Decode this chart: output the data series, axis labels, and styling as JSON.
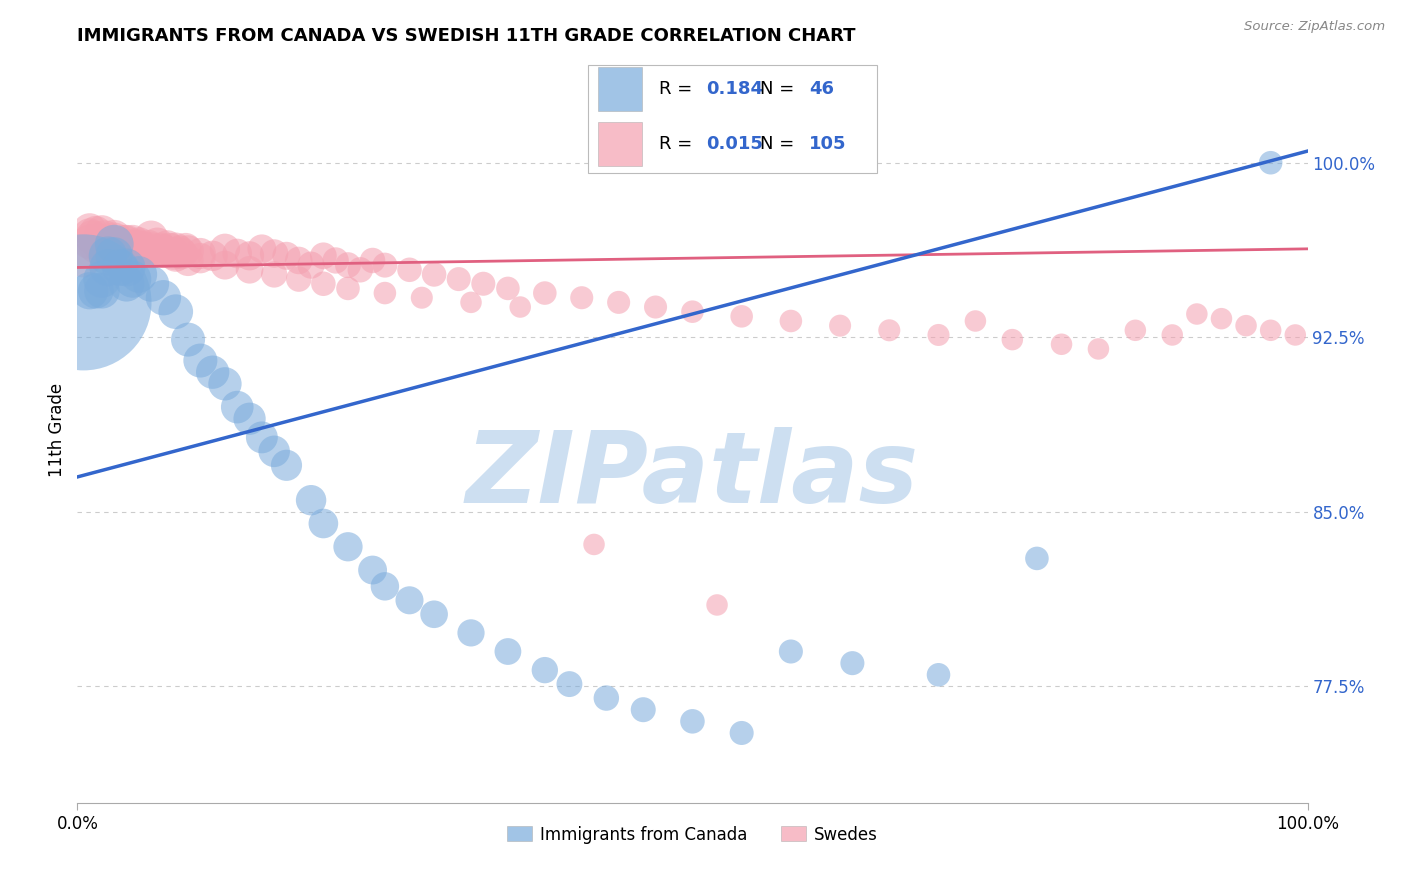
{
  "title": "IMMIGRANTS FROM CANADA VS SWEDISH 11TH GRADE CORRELATION CHART",
  "source_text": "Source: ZipAtlas.com",
  "ylabel": "11th Grade",
  "x_tick_labels": [
    "0.0%",
    "100.0%"
  ],
  "y_tick_labels_right": [
    "77.5%",
    "85.0%",
    "92.5%",
    "100.0%"
  ],
  "y_tick_values_right": [
    0.775,
    0.85,
    0.925,
    1.0
  ],
  "xlim": [
    0.0,
    1.0
  ],
  "ylim": [
    0.725,
    1.045
  ],
  "legend_R_blue": "0.184",
  "legend_N_blue": "46",
  "legend_R_pink": "0.015",
  "legend_N_pink": "105",
  "legend_label_blue": "Immigrants from Canada",
  "legend_label_pink": "Swedes",
  "blue_color": "#7AABDC",
  "pink_color": "#F4A0B0",
  "blue_line_color": "#3366CC",
  "pink_line_color": "#E06080",
  "title_fontsize": 13,
  "watermark": "ZIPatlas",
  "watermark_color": "#C8DCF0",
  "grid_color": "#CCCCCC",
  "blue_line_x": [
    0.0,
    1.0
  ],
  "blue_line_y": [
    0.865,
    1.005
  ],
  "pink_line_x": [
    0.0,
    1.0
  ],
  "pink_line_y": [
    0.955,
    0.963
  ],
  "blue_scatter_x": [
    0.005,
    0.01,
    0.015,
    0.02,
    0.02,
    0.025,
    0.025,
    0.03,
    0.03,
    0.035,
    0.04,
    0.04,
    0.045,
    0.05,
    0.06,
    0.07,
    0.08,
    0.09,
    0.1,
    0.11,
    0.12,
    0.13,
    0.14,
    0.15,
    0.16,
    0.17,
    0.19,
    0.2,
    0.22,
    0.24,
    0.25,
    0.27,
    0.29,
    0.32,
    0.35,
    0.38,
    0.4,
    0.43,
    0.46,
    0.5,
    0.54,
    0.58,
    0.63,
    0.7,
    0.78,
    0.97
  ],
  "blue_scatter_y": [
    0.94,
    0.945,
    0.945,
    0.95,
    0.945,
    0.96,
    0.955,
    0.965,
    0.96,
    0.955,
    0.955,
    0.948,
    0.95,
    0.952,
    0.948,
    0.942,
    0.936,
    0.924,
    0.915,
    0.91,
    0.905,
    0.895,
    0.89,
    0.882,
    0.876,
    0.87,
    0.855,
    0.845,
    0.835,
    0.825,
    0.818,
    0.812,
    0.806,
    0.798,
    0.79,
    0.782,
    0.776,
    0.77,
    0.765,
    0.76,
    0.755,
    0.79,
    0.785,
    0.78,
    0.83,
    1.0
  ],
  "blue_scatter_size": [
    800,
    60,
    55,
    60,
    55,
    65,
    60,
    65,
    60,
    58,
    62,
    55,
    60,
    58,
    56,
    54,
    52,
    50,
    50,
    48,
    48,
    46,
    45,
    44,
    43,
    42,
    40,
    38,
    37,
    36,
    35,
    34,
    33,
    32,
    31,
    30,
    29,
    28,
    27,
    26,
    25,
    25,
    25,
    24,
    24,
    24
  ],
  "pink_scatter_x": [
    0.005,
    0.007,
    0.01,
    0.012,
    0.015,
    0.015,
    0.018,
    0.02,
    0.022,
    0.025,
    0.028,
    0.03,
    0.033,
    0.035,
    0.038,
    0.04,
    0.042,
    0.045,
    0.048,
    0.05,
    0.053,
    0.055,
    0.058,
    0.06,
    0.063,
    0.065,
    0.068,
    0.07,
    0.073,
    0.075,
    0.078,
    0.08,
    0.083,
    0.085,
    0.088,
    0.09,
    0.1,
    0.11,
    0.12,
    0.13,
    0.14,
    0.15,
    0.16,
    0.17,
    0.18,
    0.19,
    0.2,
    0.21,
    0.22,
    0.23,
    0.24,
    0.25,
    0.27,
    0.29,
    0.31,
    0.33,
    0.35,
    0.38,
    0.41,
    0.44,
    0.47,
    0.5,
    0.54,
    0.58,
    0.62,
    0.66,
    0.7,
    0.73,
    0.76,
    0.8,
    0.83,
    0.86,
    0.89,
    0.91,
    0.93,
    0.95,
    0.97,
    0.99,
    0.01,
    0.01,
    0.02,
    0.02,
    0.03,
    0.03,
    0.04,
    0.04,
    0.05,
    0.05,
    0.06,
    0.07,
    0.08,
    0.09,
    0.1,
    0.12,
    0.14,
    0.16,
    0.18,
    0.2,
    0.22,
    0.25,
    0.28,
    0.32,
    0.36,
    0.42,
    0.52
  ],
  "pink_scatter_y": [
    0.958,
    0.962,
    0.966,
    0.968,
    0.964,
    0.97,
    0.965,
    0.97,
    0.968,
    0.966,
    0.964,
    0.968,
    0.965,
    0.963,
    0.966,
    0.964,
    0.962,
    0.966,
    0.964,
    0.965,
    0.963,
    0.962,
    0.964,
    0.963,
    0.962,
    0.965,
    0.963,
    0.962,
    0.964,
    0.963,
    0.961,
    0.963,
    0.962,
    0.961,
    0.963,
    0.962,
    0.961,
    0.96,
    0.963,
    0.961,
    0.96,
    0.963,
    0.961,
    0.96,
    0.958,
    0.956,
    0.96,
    0.958,
    0.956,
    0.954,
    0.958,
    0.956,
    0.954,
    0.952,
    0.95,
    0.948,
    0.946,
    0.944,
    0.942,
    0.94,
    0.938,
    0.936,
    0.934,
    0.932,
    0.93,
    0.928,
    0.926,
    0.932,
    0.924,
    0.922,
    0.92,
    0.928,
    0.926,
    0.935,
    0.933,
    0.93,
    0.928,
    0.926,
    0.971,
    0.969,
    0.965,
    0.963,
    0.967,
    0.964,
    0.966,
    0.963,
    0.964,
    0.962,
    0.968,
    0.962,
    0.96,
    0.958,
    0.959,
    0.956,
    0.954,
    0.952,
    0.95,
    0.948,
    0.946,
    0.944,
    0.942,
    0.94,
    0.938,
    0.836,
    0.81
  ],
  "pink_scatter_size": [
    50,
    50,
    52,
    50,
    50,
    48,
    48,
    52,
    50,
    50,
    48,
    52,
    50,
    48,
    50,
    50,
    48,
    50,
    48,
    50,
    48,
    46,
    48,
    48,
    46,
    48,
    46,
    48,
    46,
    44,
    46,
    46,
    44,
    43,
    44,
    44,
    42,
    40,
    40,
    38,
    37,
    36,
    35,
    34,
    33,
    32,
    31,
    30,
    29,
    28,
    28,
    27,
    26,
    26,
    25,
    25,
    24,
    24,
    23,
    23,
    23,
    22,
    22,
    22,
    21,
    21,
    21,
    20,
    20,
    20,
    20,
    20,
    20,
    20,
    20,
    20,
    20,
    20,
    50,
    48,
    50,
    48,
    50,
    48,
    50,
    48,
    50,
    48,
    48,
    46,
    44,
    42,
    40,
    36,
    33,
    30,
    28,
    26,
    24,
    22,
    21,
    20,
    20,
    20,
    20
  ]
}
